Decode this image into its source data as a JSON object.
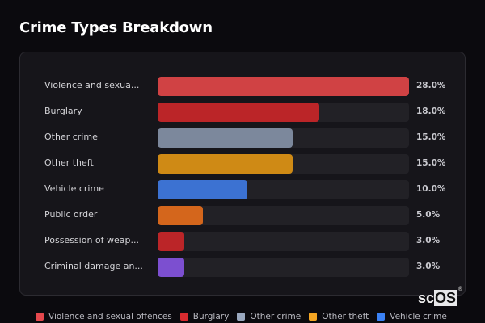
{
  "title": "Crime Types Breakdown",
  "rows": [
    {
      "label": "Violence and sexua...",
      "value": 28.0,
      "pct": "28.0%",
      "color": "#d04244"
    },
    {
      "label": "Burglary",
      "value": 18.0,
      "pct": "18.0%",
      "color": "#bb2528"
    },
    {
      "label": "Other crime",
      "value": 15.0,
      "pct": "15.0%",
      "color": "#7c889c"
    },
    {
      "label": "Other theft",
      "value": 15.0,
      "pct": "15.0%",
      "color": "#cf8a15"
    },
    {
      "label": "Vehicle crime",
      "value": 10.0,
      "pct": "10.0%",
      "color": "#3c72d2"
    },
    {
      "label": "Public order",
      "value": 5.0,
      "pct": "5.0%",
      "color": "#d4661c"
    },
    {
      "label": "Possession of weap...",
      "value": 3.0,
      "pct": "3.0%",
      "color": "#bb2528"
    },
    {
      "label": "Criminal damage an...",
      "value": 3.0,
      "pct": "3.0%",
      "color": "#7c4fd0"
    }
  ],
  "legend": [
    {
      "label": "Violence and sexual offences",
      "color": "#e5484d"
    },
    {
      "label": "Burglary",
      "color": "#d92b2f"
    },
    {
      "label": "Other crime",
      "color": "#9aa8bf"
    },
    {
      "label": "Other theft",
      "color": "#f5a623"
    },
    {
      "label": "Vehicle crime",
      "color": "#3b82f6"
    }
  ],
  "logo": {
    "sc": "sc",
    "os": "OS",
    "reg": "®"
  },
  "chart_data": {
    "type": "bar",
    "orientation": "horizontal",
    "title": "Crime Types Breakdown",
    "categories": [
      "Violence and sexual offences",
      "Burglary",
      "Other crime",
      "Other theft",
      "Vehicle crime",
      "Public order",
      "Possession of weapons",
      "Criminal damage and arson"
    ],
    "category_labels_displayed": [
      "Violence and sexua...",
      "Burglary",
      "Other crime",
      "Other theft",
      "Vehicle crime",
      "Public order",
      "Possession of weap...",
      "Criminal damage an..."
    ],
    "values": [
      28.0,
      18.0,
      15.0,
      15.0,
      10.0,
      5.0,
      3.0,
      3.0
    ],
    "value_labels": [
      "28.0%",
      "18.0%",
      "15.0%",
      "15.0%",
      "10.0%",
      "5.0%",
      "3.0%",
      "3.0%"
    ],
    "xlabel": "",
    "ylabel": "",
    "xlim": [
      0,
      28
    ],
    "grid": false,
    "legend_position": "bottom",
    "legend": [
      "Violence and sexual offences",
      "Burglary",
      "Other crime",
      "Other theft",
      "Vehicle crime"
    ]
  }
}
